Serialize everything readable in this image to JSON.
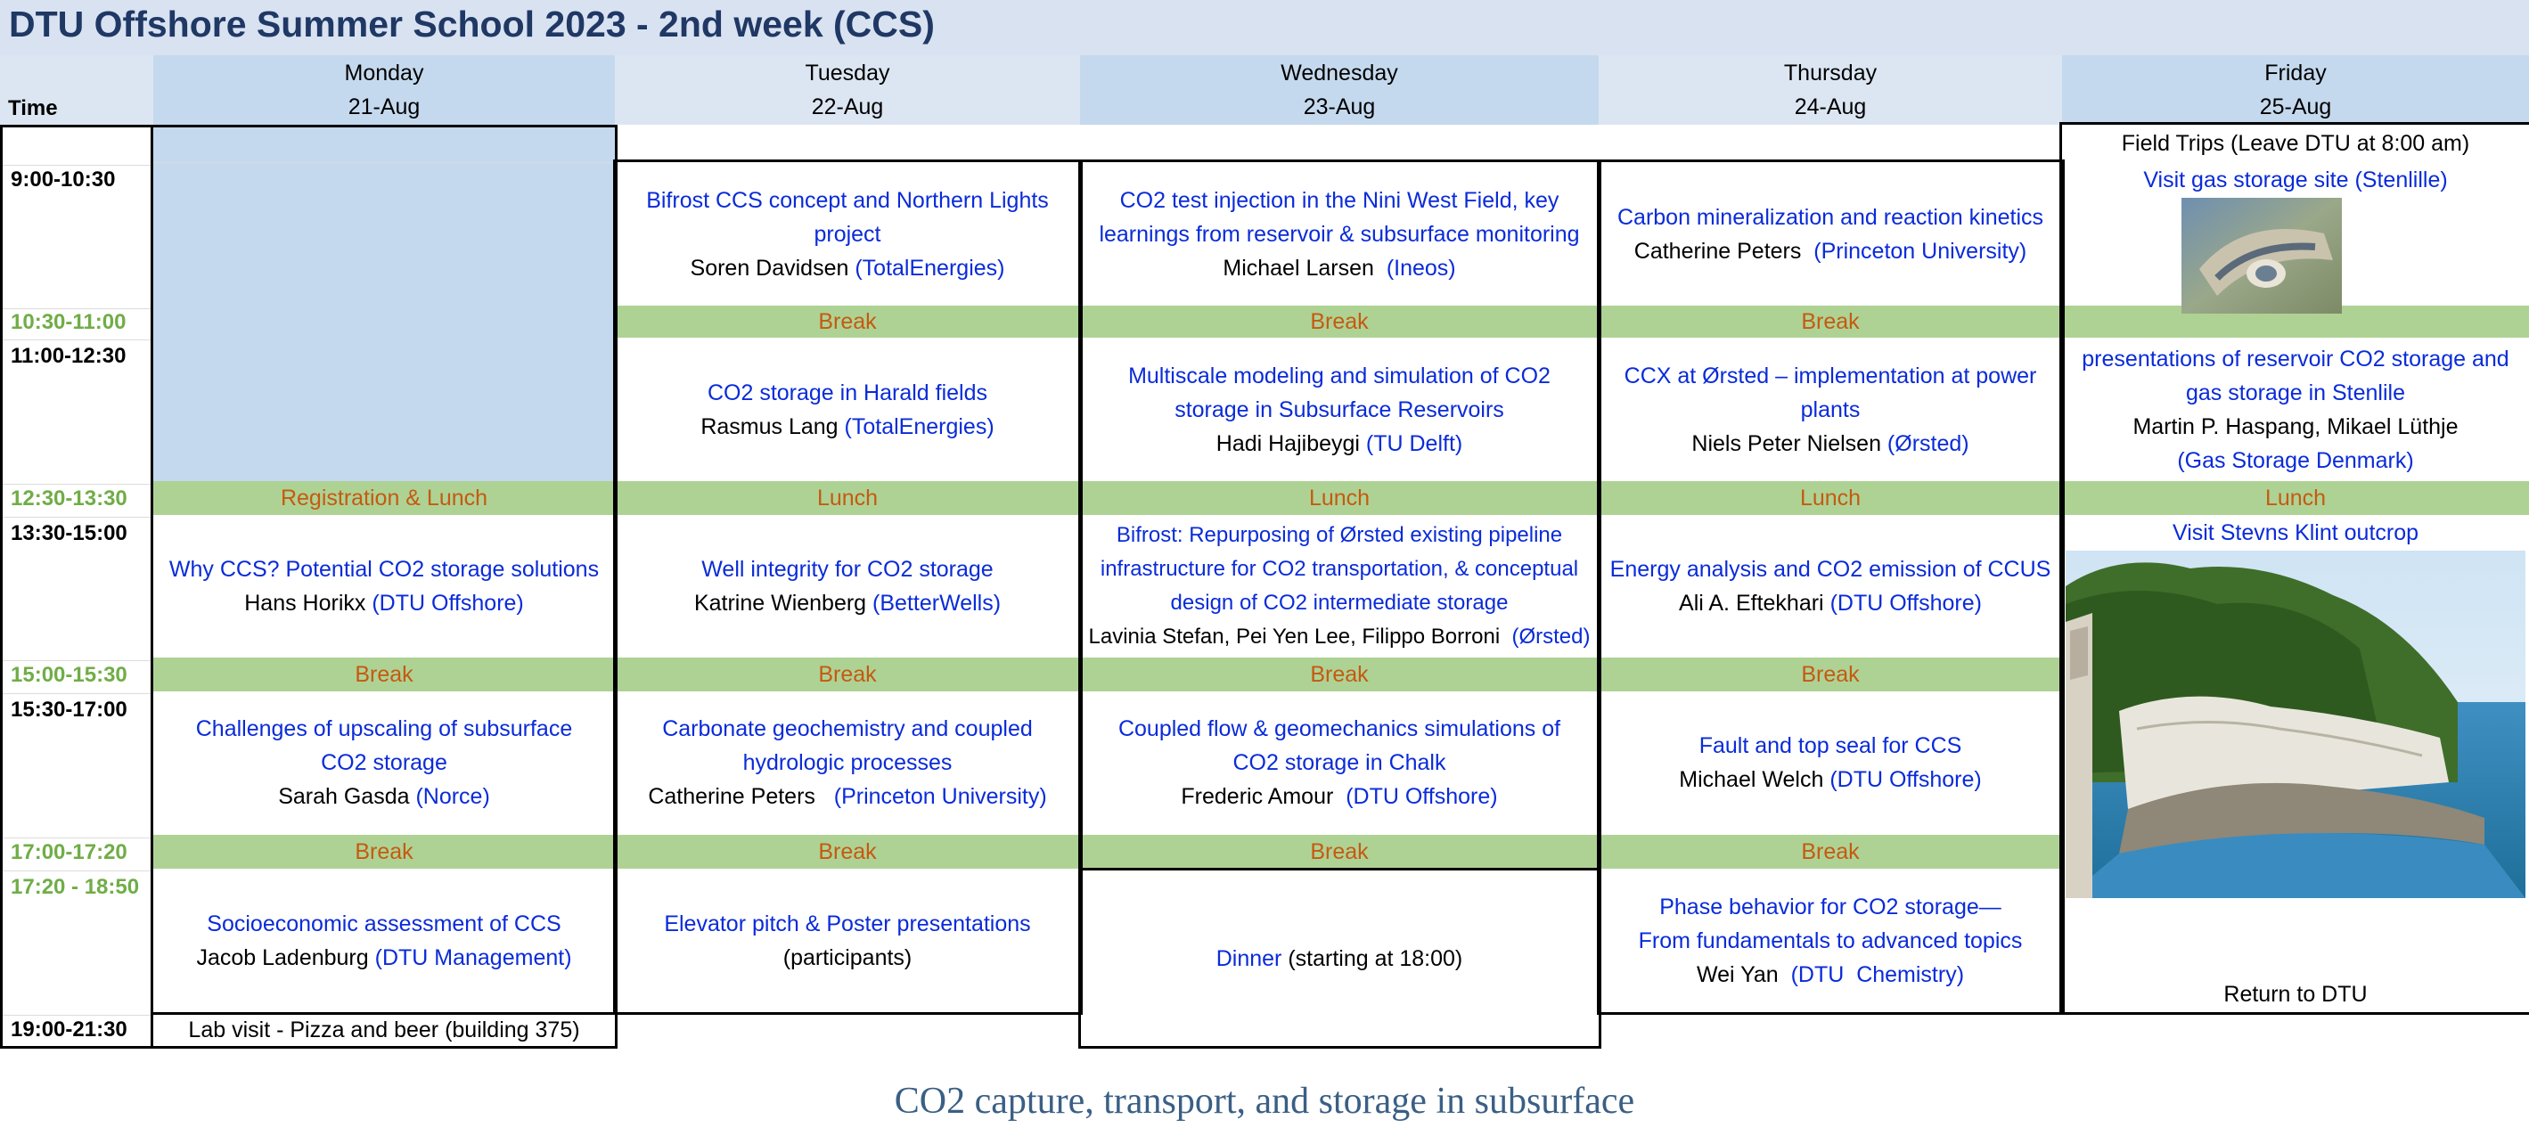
{
  "title": "DTU Offshore  Summer School 2023 - 2nd week (CCS)",
  "footer": "CO2 capture, transport, and storage in subsurface",
  "time_header": "Time",
  "days": [
    {
      "name": "Monday",
      "date": "21-Aug"
    },
    {
      "name": "Tuesday",
      "date": "22-Aug"
    },
    {
      "name": "Wednesday",
      "date": "23-Aug"
    },
    {
      "name": "Thursday",
      "date": "24-Aug"
    },
    {
      "name": "Friday",
      "date": "25-Aug"
    }
  ],
  "times": {
    "t1": "9:00-10:30",
    "t2": "10:30-11:00",
    "t3": "11:00-12:30",
    "t4": "12:30-13:30",
    "t5": "13:30-15:00",
    "t6": "15:00-15:30",
    "t7": "15:30-17:00",
    "t8": "17:00-17:20",
    "t9": "17:20 - 18:50",
    "t10": "19:00-21:30"
  },
  "labels": {
    "break": "Break",
    "lunch": "Lunch",
    "registration_lunch": "Registration & Lunch"
  },
  "monday": {
    "s3_title": "Why CCS? Potential CO2 storage solutions",
    "s3_speaker": "Hans Horikx ",
    "s3_aff": "(DTU Offshore)",
    "s4_title": "Challenges of upscaling of subsurface CO2 storage",
    "s4_speaker": "Sarah Gasda ",
    "s4_aff": "(Norce)",
    "s5_title": "Socioeconomic assessment of CCS",
    "s5_speaker": "Jacob Ladenburg  ",
    "s5_aff": "(DTU Management)",
    "evening": "Lab visit - Pizza and beer (building 375)"
  },
  "tuesday": {
    "s1_title": "Bifrost CCS concept and Northern Lights project",
    "s1_speaker": "Soren Davidsen ",
    "s1_aff": "(TotalEnergies)",
    "s2_title": "CO2 storage in Harald fields",
    "s2_speaker": "Rasmus Lang ",
    "s2_aff": "(TotalEnergies)",
    "s3_title": "Well integrity for CO2 storage",
    "s3_speaker": "Katrine Wienberg ",
    "s3_aff": "(BetterWells)",
    "s4_title": "Carbonate geochemistry and coupled hydrologic processes",
    "s4_speaker": "Catherine Peters   ",
    "s4_aff": "(Princeton University)",
    "s5_title": "Elevator pitch & Poster presentations",
    "s5_speaker": "(participants)"
  },
  "wednesday": {
    "s1_title": "CO2 test injection in the Nini West Field, key learnings from reservoir & subsurface monitoring",
    "s1_speaker": "Michael Larsen  ",
    "s1_aff": "(Ineos)",
    "s2_title": "Multiscale modeling and simulation of CO2 storage in Subsurface Reservoirs",
    "s2_speaker": "Hadi Hajibeygi ",
    "s2_aff": "(TU Delft)",
    "s3_title": "Bifrost: Repurposing of Ørsted existing pipeline infrastructure for CO2 transportation, & conceptual design of CO2 intermediate storage",
    "s3_speaker": "Lavinia Stefan, Pei Yen Lee, Filippo Borroni  ",
    "s3_aff": "(Ørsted)",
    "s4_title": "Coupled flow & geomechanics simulations of CO2 storage in Chalk",
    "s4_speaker": "Frederic Amour  ",
    "s4_aff": "(DTU Offshore)",
    "dinner": "Dinner",
    "dinner_note": " (starting at 18:00)"
  },
  "thursday": {
    "s1_title": "Carbon mineralization and reaction kinetics",
    "s1_speaker": "Catherine Peters  ",
    "s1_aff": "(Princeton University)",
    "s2_title": "CCX at Ørsted – implementation at power plants",
    "s2_speaker": "Niels Peter Nielsen ",
    "s2_aff": "(Ørsted)",
    "s3_title": "Energy analysis and CO2 emission of CCUS",
    "s3_speaker": "Ali A. Eftekhari ",
    "s3_aff": "(DTU Offshore)",
    "s4_title": "Fault and top seal for CCS",
    "s4_speaker": "Michael Welch ",
    "s4_aff": "(DTU Offshore)",
    "s5_title": "Phase behavior for CO2 storage—From fundamentals to advanced topics",
    "s5_speaker": "Wei Yan  ",
    "s5_aff": "(DTU  Chemistry)"
  },
  "friday": {
    "field_trips": "Field Trips (Leave DTU at 8:00 am)",
    "visit1": "Visit gas storage site (Stenlille)",
    "pres_title": "presentations of reservoir CO2 storage and gas storage in Stenlile",
    "pres_speakers": "Martin P. Haspang, Mikael Lüthje",
    "pres_aff": "(Gas Storage Denmark)",
    "visit2": "Visit Stevns Klint outcrop",
    "return": "Return to DTU"
  }
}
